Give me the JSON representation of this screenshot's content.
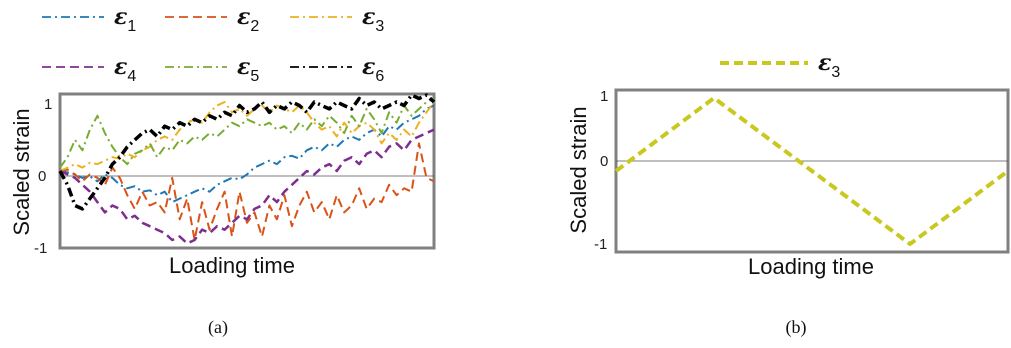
{
  "chart_data": [
    {
      "panel_label": "(a)",
      "type": "line",
      "xlabel": "Loading time",
      "ylabel": "Scaled strain",
      "ylim": [
        -1,
        1
      ],
      "yticks": [
        "1",
        "0",
        "-1"
      ],
      "legend": {
        "placement": "top",
        "columns": 3
      },
      "x": [
        0,
        1,
        2,
        3,
        4,
        5,
        6,
        7,
        8,
        9,
        10,
        11,
        12,
        13,
        14,
        15,
        16,
        17,
        18,
        19,
        20,
        21,
        22,
        23,
        24,
        25,
        26,
        27,
        28,
        29,
        30,
        31,
        32,
        33,
        34,
        35,
        36,
        37,
        38,
        39,
        40,
        41,
        42,
        43,
        44,
        45,
        46,
        47,
        48,
        49,
        50
      ],
      "series": [
        {
          "sub": "1",
          "color": "#1f77b4",
          "dash": "dashdot",
          "values": [
            0.0,
            -0.02,
            -0.05,
            -0.1,
            -0.08,
            -0.15,
            -0.05,
            -0.1,
            -0.2,
            -0.25,
            -0.22,
            -0.3,
            -0.28,
            -0.35,
            -0.3,
            -0.45,
            -0.4,
            -0.35,
            -0.3,
            -0.25,
            -0.3,
            -0.2,
            -0.15,
            -0.1,
            -0.12,
            -0.05,
            0.05,
            0.1,
            0.15,
            0.1,
            0.2,
            0.22,
            0.18,
            0.3,
            0.35,
            0.3,
            0.4,
            0.35,
            0.45,
            0.5,
            0.45,
            0.55,
            0.6,
            0.5,
            0.65,
            0.6,
            0.7,
            0.75,
            0.8,
            0.9,
            0.95
          ]
        },
        {
          "sub": "2",
          "color": "#d95319",
          "dash": "dashed",
          "values": [
            0.0,
            0.02,
            -0.05,
            -0.15,
            -0.05,
            -0.1,
            -0.2,
            0.05,
            -0.1,
            -0.35,
            -0.55,
            -0.3,
            -0.5,
            -0.45,
            -0.6,
            -0.1,
            -0.7,
            -0.4,
            -1.0,
            -0.45,
            -0.85,
            -0.55,
            -0.3,
            -0.95,
            -0.3,
            -0.75,
            -0.6,
            -0.95,
            -0.5,
            -0.7,
            -0.35,
            -0.8,
            -0.5,
            -0.3,
            -0.6,
            -0.45,
            -0.7,
            -0.35,
            -0.6,
            -0.5,
            -0.25,
            -0.55,
            -0.4,
            -0.45,
            -0.2,
            -0.35,
            -0.25,
            -0.3,
            0.4,
            -0.1,
            -0.15
          ]
        },
        {
          "sub": "3",
          "color": "#edb120",
          "dash": "dashdot",
          "values": [
            0.0,
            0.05,
            0.1,
            0.05,
            0.12,
            0.1,
            0.15,
            0.2,
            0.18,
            0.25,
            0.2,
            0.3,
            0.35,
            0.45,
            0.5,
            0.45,
            0.6,
            0.7,
            0.75,
            0.7,
            0.85,
            0.95,
            1.0,
            0.85,
            0.9,
            0.8,
            0.9,
            0.95,
            0.85,
            0.95,
            0.9,
            0.85,
            0.95,
            0.85,
            0.7,
            0.6,
            0.65,
            0.5,
            0.7,
            0.55,
            0.65,
            0.7,
            0.6,
            0.4,
            0.55,
            0.45,
            0.6,
            0.5,
            0.7,
            0.85,
            1.0
          ]
        },
        {
          "sub": "4",
          "color": "#7e2f8e",
          "dash": "dashed",
          "values": [
            0.0,
            -0.05,
            -0.1,
            -0.2,
            -0.3,
            -0.45,
            -0.6,
            -0.5,
            -0.55,
            -0.7,
            -0.65,
            -0.75,
            -0.8,
            -0.85,
            -0.9,
            -1.0,
            -0.95,
            -1.05,
            -1.0,
            -0.85,
            -0.9,
            -0.8,
            -0.85,
            -0.75,
            -0.65,
            -0.7,
            -0.55,
            -0.5,
            -0.35,
            -0.45,
            -0.3,
            -0.2,
            -0.1,
            0.0,
            -0.05,
            0.05,
            0.1,
            0.0,
            0.15,
            0.2,
            0.1,
            0.25,
            0.3,
            0.2,
            0.35,
            0.4,
            0.3,
            0.45,
            0.5,
            0.55,
            0.6
          ]
        },
        {
          "sub": "5",
          "color": "#77ac30",
          "dash": "dashdot",
          "values": [
            0.05,
            0.2,
            0.45,
            0.3,
            0.6,
            0.8,
            0.55,
            0.35,
            0.2,
            0.1,
            0.25,
            0.3,
            0.4,
            0.2,
            0.35,
            0.3,
            0.45,
            0.4,
            0.5,
            0.45,
            0.55,
            0.5,
            0.6,
            0.7,
            0.65,
            0.75,
            0.7,
            0.65,
            0.7,
            0.6,
            0.65,
            0.55,
            0.7,
            0.6,
            0.75,
            0.65,
            0.8,
            0.7,
            0.55,
            0.8,
            0.65,
            0.9,
            0.75,
            0.55,
            0.85,
            0.7,
            0.95,
            0.8,
            0.9,
            1.0,
            1.05
          ]
        },
        {
          "sub": "6",
          "color": "#000000",
          "dash": "dashdot",
          "values": [
            0.0,
            -0.2,
            -0.5,
            -0.55,
            -0.4,
            -0.25,
            -0.1,
            0.1,
            0.2,
            0.35,
            0.45,
            0.55,
            0.6,
            0.5,
            0.65,
            0.6,
            0.7,
            0.65,
            0.75,
            0.7,
            0.8,
            0.75,
            0.85,
            0.8,
            0.95,
            0.85,
            0.9,
            1.0,
            0.85,
            0.95,
            0.9,
            1.0,
            0.95,
            0.85,
            1.0,
            0.95,
            0.9,
            1.0,
            0.95,
            0.9,
            1.05,
            0.95,
            1.0,
            0.9,
            0.95,
            1.0,
            0.95,
            1.1,
            1.05,
            1.1,
            1.0
          ]
        }
      ]
    },
    {
      "panel_label": "(b)",
      "type": "line",
      "xlabel": "Loading time",
      "ylabel": "Scaled strain",
      "ylim": [
        -1,
        1
      ],
      "yticks": [
        "1",
        "0",
        "-1"
      ],
      "legend": {
        "placement": "top"
      },
      "x": [
        0,
        0.25,
        0.5,
        0.75,
        1
      ],
      "series": [
        {
          "sub": "3",
          "color": "#c8c81e",
          "dash": "dashed",
          "values": [
            0,
            1,
            0,
            -1,
            0
          ]
        }
      ]
    }
  ]
}
